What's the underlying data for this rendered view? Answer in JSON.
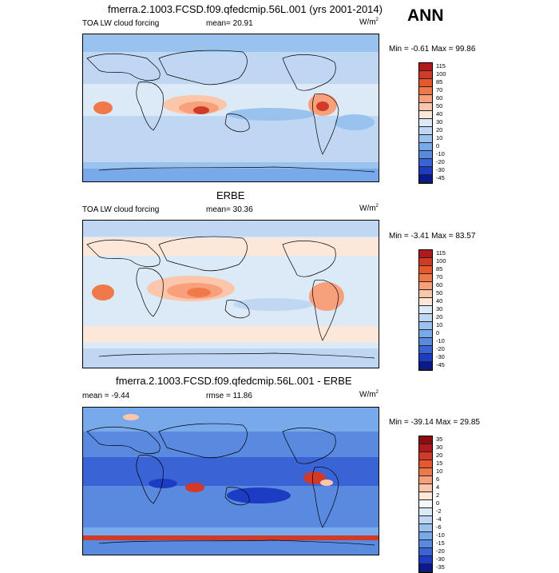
{
  "panels": [
    {
      "title": "fmerra.2.1003.FCSD.f09.qfedcmip.56L.001 (yrs 2001-2014)",
      "left_label": "TOA LW cloud forcing",
      "stat1": "mean=  20.91",
      "stat2": "",
      "units": "W/m",
      "units_sup": "2",
      "minmax": "Min = -0.61 Max =  99.86",
      "levels": [
        "115",
        "100",
        "85",
        "70",
        "60",
        "50",
        "40",
        "30",
        "20",
        "10",
        "0",
        "-10",
        "-20",
        "-30",
        "-45"
      ],
      "colors": [
        "#b01a1a",
        "#d23a28",
        "#e7582f",
        "#f0794a",
        "#f7a07b",
        "#fcc6aa",
        "#fde7d9",
        "#dce9f6",
        "#bfd7f2",
        "#99c2ee",
        "#78a9ea",
        "#5a8ae0",
        "#3a64d6",
        "#1c3cc4",
        "#0a1a8c"
      ]
    },
    {
      "title": "ERBE",
      "left_label": "TOA LW cloud forcing",
      "stat1": "mean=  30.36",
      "stat2": "",
      "units": "W/m",
      "units_sup": "2",
      "minmax": "Min = -3.41 Max =  83.57",
      "levels": [
        "115",
        "100",
        "85",
        "70",
        "60",
        "50",
        "40",
        "30",
        "20",
        "10",
        "0",
        "-10",
        "-20",
        "-30",
        "-45"
      ],
      "colors": [
        "#b01a1a",
        "#d23a28",
        "#e7582f",
        "#f0794a",
        "#f7a07b",
        "#fcc6aa",
        "#fde7d9",
        "#dce9f6",
        "#bfd7f2",
        "#99c2ee",
        "#78a9ea",
        "#5a8ae0",
        "#3a64d6",
        "#1c3cc4",
        "#0a1a8c"
      ]
    },
    {
      "title": "fmerra.2.1003.FCSD.f09.qfedcmip.56L.001 - ERBE",
      "left_label": "mean =  -9.44",
      "stat1": "",
      "stat2": "rmse =  11.86",
      "units": "W/m",
      "units_sup": "2",
      "minmax": "Min = -39.14 Max =  29.85",
      "levels": [
        "35",
        "30",
        "20",
        "15",
        "10",
        "6",
        "4",
        "2",
        "0",
        "-2",
        "-4",
        "-6",
        "-10",
        "-15",
        "-20",
        "-30",
        "-35"
      ],
      "colors": [
        "#8c0d0d",
        "#b01a1a",
        "#d23a28",
        "#e7582f",
        "#f0794a",
        "#f7a07b",
        "#fcc6aa",
        "#fde7d9",
        "#f4f7fc",
        "#dce9f6",
        "#bfd7f2",
        "#99c2ee",
        "#78a9ea",
        "#5a8ae0",
        "#3a64d6",
        "#1c3cc4",
        "#0a1a8c"
      ]
    }
  ],
  "season": "ANN"
}
